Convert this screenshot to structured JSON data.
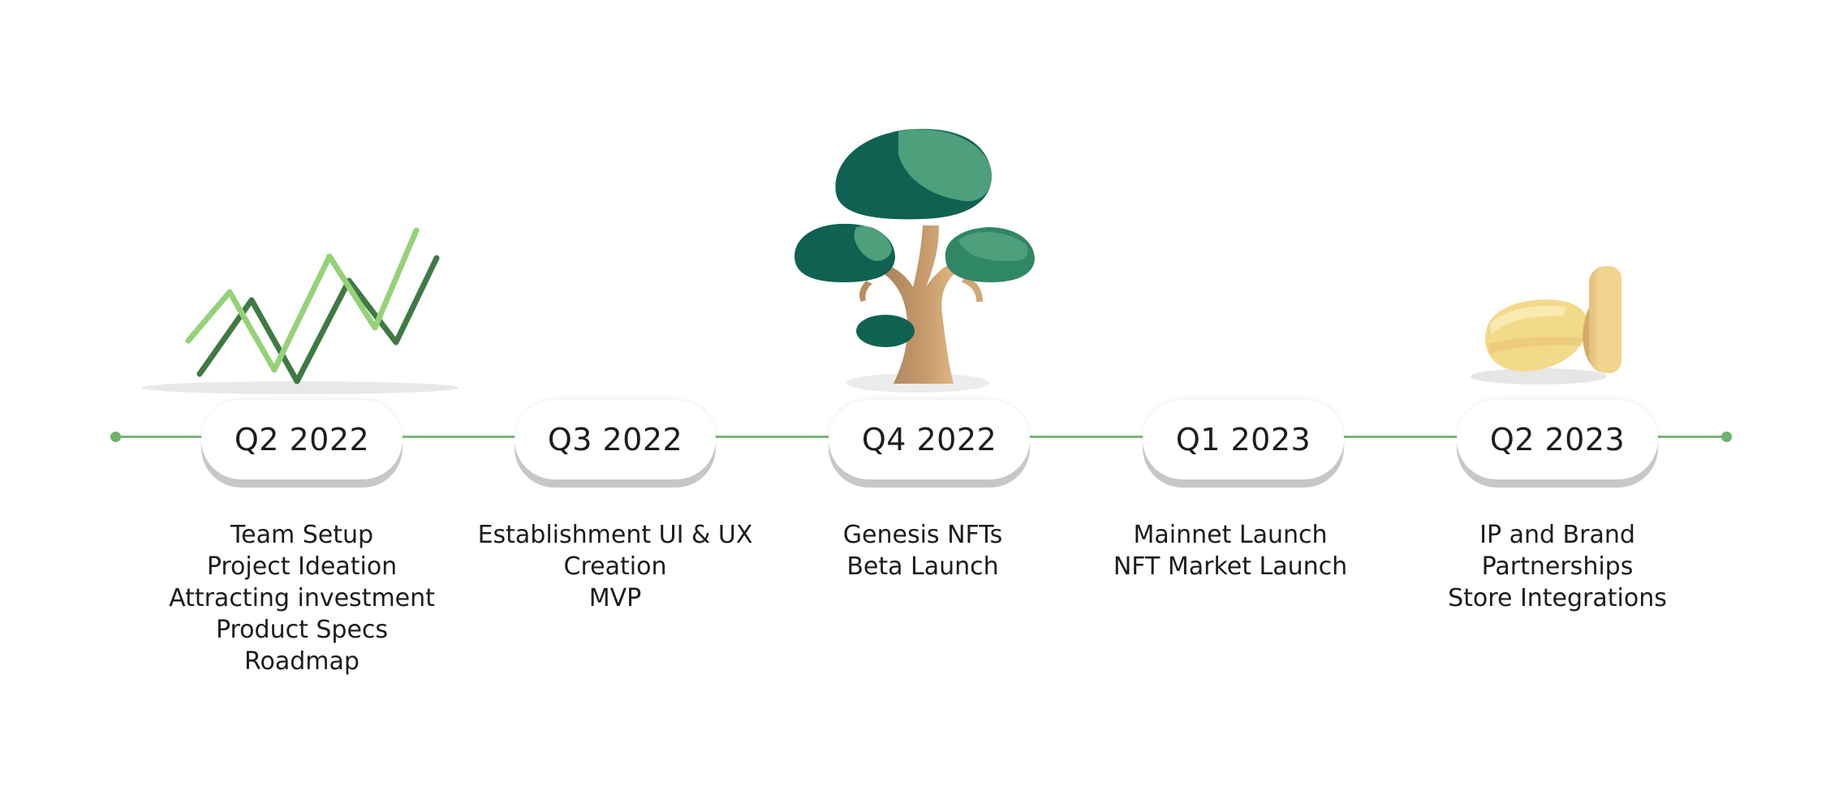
{
  "milestones": [
    {
      "quarter": "Q2 2022",
      "icon": "trend-lines-icon",
      "items": [
        "Team Setup",
        "Project Ideation",
        "Attracting investment",
        "Product Specs",
        "Roadmap"
      ]
    },
    {
      "quarter": "Q3 2022",
      "icon": "",
      "items": [
        "Establishment UI & UX",
        "Creation",
        "MVP"
      ]
    },
    {
      "quarter": "Q4 2022",
      "icon": "tree-icon",
      "items": [
        "Genesis NFTs",
        "Beta Launch"
      ]
    },
    {
      "quarter": "Q1 2023",
      "icon": "",
      "items": [
        "Mainnet Launch",
        "NFT Market Launch"
      ]
    },
    {
      "quarter": "Q2 2023",
      "icon": "coins-icon",
      "items": [
        "IP and Brand",
        "Partnerships",
        "Store Integrations"
      ]
    }
  ],
  "colors": {
    "line": "#7ab67a",
    "dark_green": "#0f6251",
    "light_green": "#4e9f7c",
    "trunk": "#c69a6b",
    "coin": "#f1d789"
  }
}
